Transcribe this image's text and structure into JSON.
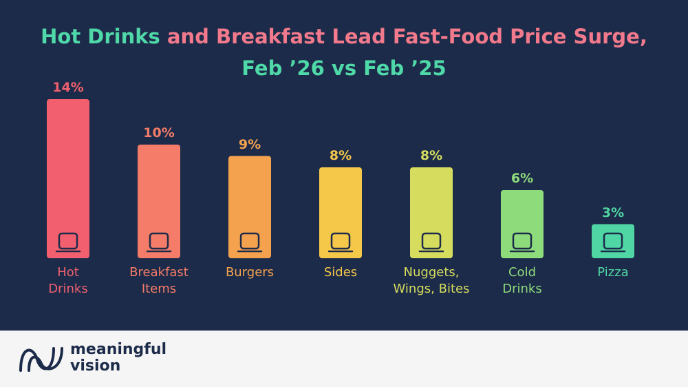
{
  "chart_data": {
    "type": "bar",
    "title": [
      [
        {
          "text": "Hot Drinks",
          "color": "#4fd8a8"
        },
        {
          "text": "and Breakfast",
          "color": "#f27a8c"
        },
        {
          "text": "Lead Fast-Food Price Surge,",
          "color": "#f27a8c"
        }
      ],
      [
        {
          "text": "Feb ’26 vs Feb ’25",
          "color": "#4fd8a8"
        }
      ]
    ],
    "categories": [
      [
        "Hot",
        "Drinks"
      ],
      [
        "Breakfast",
        "Items"
      ],
      [
        "Burgers"
      ],
      [
        "Sides"
      ],
      [
        "Nuggets,",
        "Wings, Bites"
      ],
      [
        "Cold",
        "Drinks"
      ],
      [
        "Pizza"
      ]
    ],
    "values": [
      14,
      10,
      9,
      8,
      8,
      6,
      3
    ],
    "value_labels": [
      "14%",
      "10%",
      "9%",
      "8%",
      "8%",
      "6%",
      "3%"
    ],
    "colors": [
      "#f2606f",
      "#f47c68",
      "#f5a24f",
      "#f6c84a",
      "#d6dd5e",
      "#8edb7c",
      "#4fd6a4"
    ]
  },
  "footer": {
    "brand": [
      "meaningful",
      "vision"
    ]
  }
}
